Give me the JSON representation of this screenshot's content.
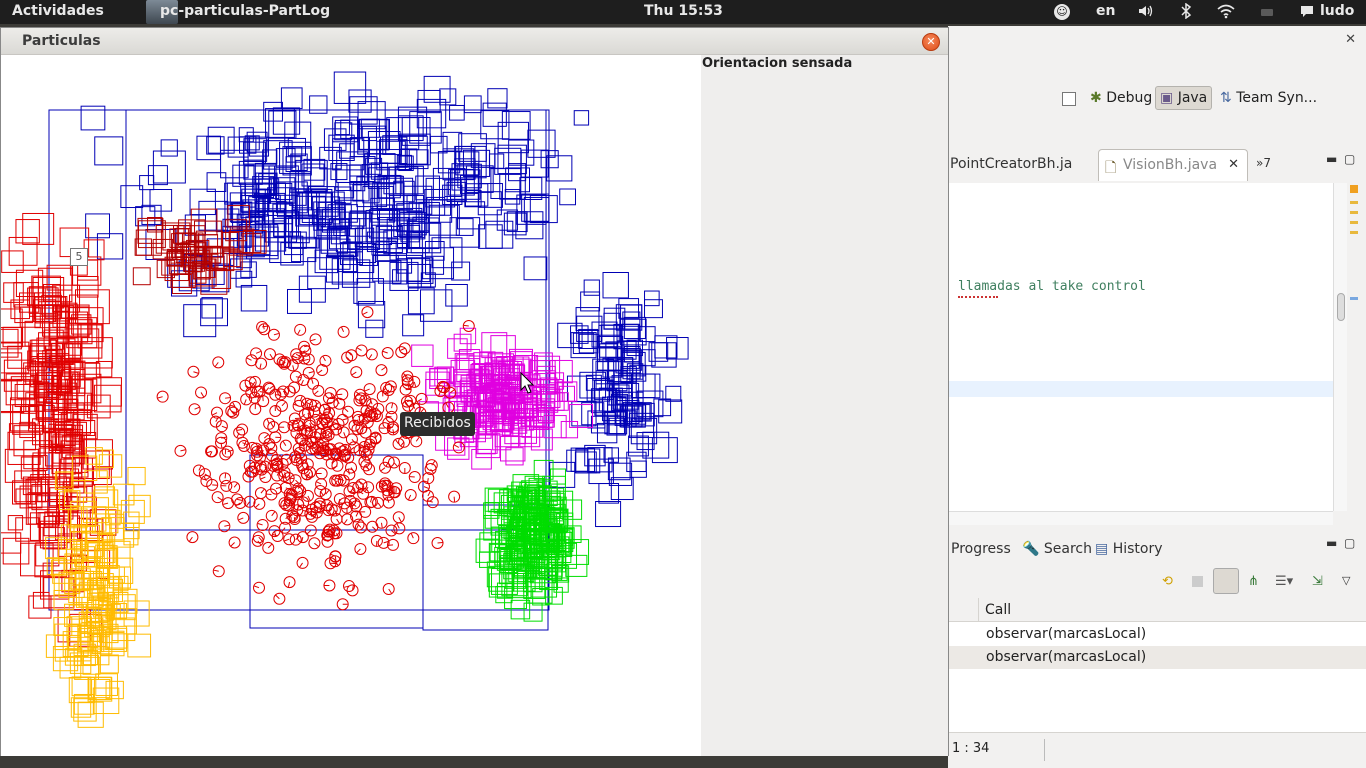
{
  "topbar": {
    "activities": "Actividades",
    "app_name": "pc-particulas-PartLog",
    "clock": "Thu 15:53",
    "language": "en",
    "user": "ludo",
    "icons": [
      "accessibility-icon",
      "volume-icon",
      "bluetooth-icon",
      "wifi-icon",
      "battery-icon",
      "chat-icon"
    ]
  },
  "particulas_window": {
    "title": "Particulas",
    "side_panel_title": "Orientacion sensada",
    "tooltip": "Recibidos",
    "canvas_label": "5",
    "particle_colors": {
      "blue": "#0000b4",
      "red": "#e00000",
      "magenta": "#e000e0",
      "green": "#00dd00",
      "orange": "#ffbb00",
      "dark_red": "#b40000"
    }
  },
  "eclipse": {
    "perspectives": {
      "debug": "Debug",
      "java": "Java",
      "team": "Team Syn..."
    },
    "editor_tabs": {
      "pointcreator": "PointCreatorBh.ja",
      "vision": "VisionBh.java",
      "more": "»7"
    },
    "code_comment": "llamadas al take control",
    "bottom_tabs": {
      "progress": "Progress",
      "search": "Search",
      "history": "History"
    },
    "call_table": {
      "header": "Call",
      "rows": [
        "observar(marcasLocal)",
        "observar(marcasLocal)"
      ]
    },
    "status_position": "1 : 34"
  }
}
